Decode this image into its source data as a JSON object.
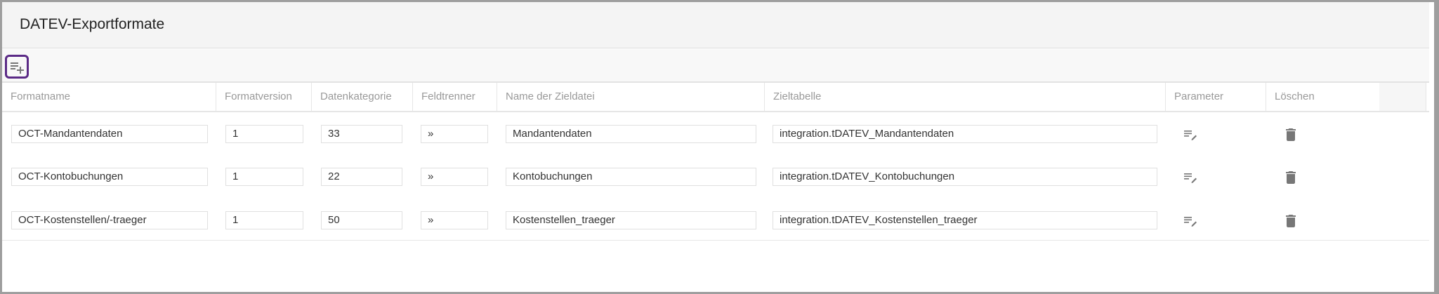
{
  "title": "DATEV-Exportformate",
  "toolbar": {
    "add_icon": "playlist-add-icon"
  },
  "columns": [
    "Formatname",
    "Formatversion",
    "Datenkategorie",
    "Feldtrenner",
    "Name der Zieldatei",
    "Zieltabelle",
    "Parameter",
    "Löschen"
  ],
  "rows": [
    {
      "name": "OCT-Mandantendaten",
      "version": "1",
      "category": "33",
      "separator": "»",
      "file": "Mandantendaten",
      "table": "integration.tDATEV_Mandantendaten"
    },
    {
      "name": "OCT-Kontobuchungen",
      "version": "1",
      "category": "22",
      "separator": "»",
      "file": "Kontobuchungen",
      "table": "integration.tDATEV_Kontobuchungen"
    },
    {
      "name": "OCT-Kostenstellen/-traeger",
      "version": "1",
      "category": "50",
      "separator": "»",
      "file": "Kostenstellen_traeger",
      "table": "integration.tDATEV_Kostenstellen_traeger"
    }
  ],
  "icons": {
    "parameter": "playlist-edit-icon",
    "delete": "trash-icon"
  },
  "colors": {
    "accent": "#5b2a86",
    "icon": "#777777"
  }
}
